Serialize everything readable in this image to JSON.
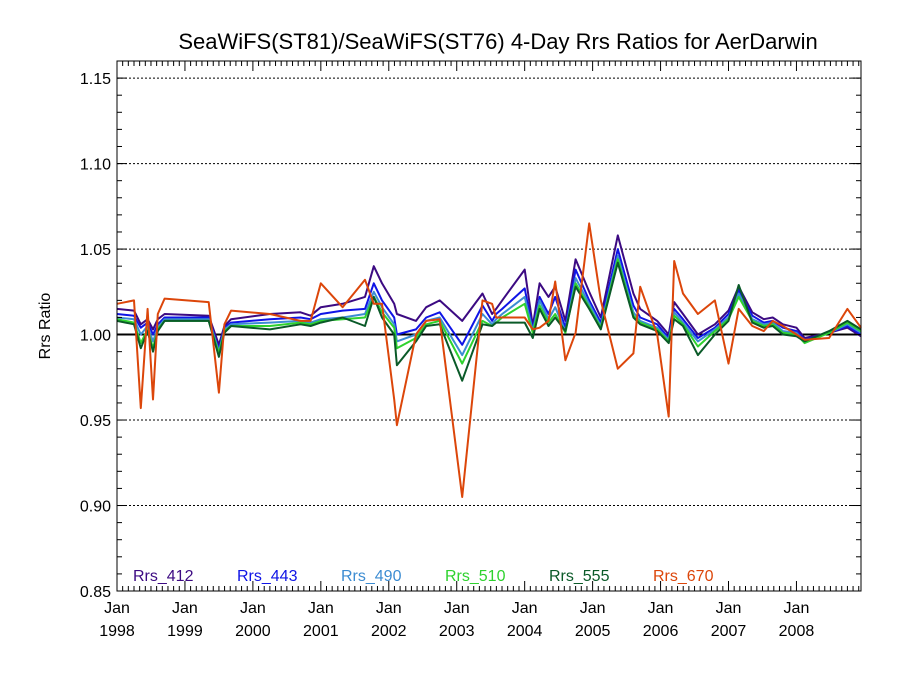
{
  "chart_data": {
    "type": "line",
    "title": "SeaWiFS(ST81)/SeaWiFS(ST76) 4-Day Rrs Ratios for AerDarwin",
    "xlabel": "",
    "ylabel": "Rrs Ratio",
    "xlim": [
      1998.0,
      2008.95
    ],
    "ylim": [
      0.85,
      1.16
    ],
    "reference_line": 1.0,
    "grid": "horizontal dotted",
    "legend_placement": "bottom-left inside",
    "x_ticks": [
      {
        "value": 1998,
        "month": "Jan",
        "year": "1998"
      },
      {
        "value": 1999,
        "month": "Jan",
        "year": "1999"
      },
      {
        "value": 2000,
        "month": "Jan",
        "year": "2000"
      },
      {
        "value": 2001,
        "month": "Jan",
        "year": "2001"
      },
      {
        "value": 2002,
        "month": "Jan",
        "year": "2002"
      },
      {
        "value": 2003,
        "month": "Jan",
        "year": "2003"
      },
      {
        "value": 2004,
        "month": "Jan",
        "year": "2004"
      },
      {
        "value": 2005,
        "month": "Jan",
        "year": "2005"
      },
      {
        "value": 2006,
        "month": "Jan",
        "year": "2006"
      },
      {
        "value": 2007,
        "month": "Jan",
        "year": "2007"
      },
      {
        "value": 2008,
        "month": "Jan",
        "year": "2008"
      }
    ],
    "y_ticks": [
      {
        "value": 0.85,
        "label": "0.85"
      },
      {
        "value": 0.9,
        "label": "0.90"
      },
      {
        "value": 0.95,
        "label": "0.95"
      },
      {
        "value": 1.0,
        "label": "1.00"
      },
      {
        "value": 1.05,
        "label": "1.05"
      },
      {
        "value": 1.1,
        "label": "1.10"
      },
      {
        "value": 1.15,
        "label": "1.15"
      }
    ],
    "x": [
      1998.0,
      1998.25,
      1998.35,
      1998.45,
      1998.53,
      1998.6,
      1998.7,
      1999.35,
      1999.5,
      1999.58,
      1999.68,
      2000.25,
      2000.7,
      2000.85,
      2001.0,
      2001.32,
      2001.65,
      2001.78,
      2001.9,
      2002.08,
      2002.12,
      2002.4,
      2002.55,
      2002.75,
      2003.08,
      2003.38,
      2003.52,
      2003.58,
      2003.67,
      2004.0,
      2004.12,
      2004.22,
      2004.35,
      2004.45,
      2004.6,
      2004.75,
      2004.95,
      2005.12,
      2005.37,
      2005.6,
      2005.7,
      2005.95,
      2006.12,
      2006.2,
      2006.33,
      2006.55,
      2006.8,
      2007.0,
      2007.15,
      2007.35,
      2007.52,
      2007.65,
      2007.8,
      2008.0,
      2008.12,
      2008.48,
      2008.75,
      2008.95
    ],
    "series": [
      {
        "name": "Rrs_412",
        "color": "#3c0a82",
        "values": [
          1.015,
          1.014,
          1.006,
          1.009,
          1.003,
          1.009,
          1.012,
          1.011,
          0.994,
          1.005,
          1.009,
          1.012,
          1.013,
          1.011,
          1.016,
          1.018,
          1.022,
          1.04,
          1.03,
          1.018,
          1.012,
          1.008,
          1.016,
          1.02,
          1.008,
          1.024,
          1.012,
          1.015,
          1.02,
          1.038,
          1.005,
          1.03,
          1.022,
          1.028,
          1.008,
          1.044,
          1.025,
          1.01,
          1.058,
          1.024,
          1.015,
          1.008,
          1.0,
          1.019,
          1.012,
          1.0,
          1.006,
          1.014,
          1.028,
          1.013,
          1.009,
          1.01,
          1.006,
          1.004,
          0.998,
          1.001,
          1.004,
          0.999
        ]
      },
      {
        "name": "Rrs_443",
        "color": "#0f14e6",
        "values": [
          1.012,
          1.011,
          1.004,
          1.007,
          1.0,
          1.006,
          1.01,
          1.01,
          0.991,
          1.004,
          1.007,
          1.009,
          1.01,
          1.009,
          1.012,
          1.014,
          1.015,
          1.03,
          1.02,
          1.01,
          1.0,
          1.003,
          1.01,
          1.013,
          0.994,
          1.017,
          1.008,
          1.012,
          1.015,
          1.027,
          1.003,
          1.022,
          1.012,
          1.022,
          1.004,
          1.038,
          1.02,
          1.007,
          1.05,
          1.017,
          1.01,
          1.006,
          0.998,
          1.015,
          1.009,
          0.998,
          1.004,
          1.012,
          1.026,
          1.011,
          1.007,
          1.008,
          1.004,
          1.002,
          0.997,
          1.001,
          1.005,
          1.0
        ]
      },
      {
        "name": "Rrs_490",
        "color": "#3c8cd2",
        "values": [
          1.01,
          1.009,
          1.0,
          1.005,
          0.996,
          1.004,
          1.009,
          1.009,
          0.99,
          1.003,
          1.006,
          1.007,
          1.008,
          1.007,
          1.009,
          1.01,
          1.012,
          1.025,
          1.016,
          1.006,
          0.996,
          1.0,
          1.008,
          1.01,
          0.988,
          1.012,
          1.006,
          1.009,
          1.012,
          1.022,
          1.002,
          1.02,
          1.009,
          1.016,
          1.002,
          1.033,
          1.018,
          1.005,
          1.046,
          1.013,
          1.008,
          1.004,
          0.997,
          1.013,
          1.007,
          0.996,
          1.003,
          1.01,
          1.024,
          1.009,
          1.006,
          1.007,
          1.002,
          1.001,
          0.996,
          1.001,
          1.006,
          1.001
        ]
      },
      {
        "name": "Rrs_510",
        "color": "#2ed22e",
        "values": [
          1.009,
          1.007,
          0.995,
          1.003,
          0.992,
          1.003,
          1.008,
          1.008,
          0.989,
          1.002,
          1.005,
          1.005,
          1.007,
          1.006,
          1.008,
          1.009,
          1.01,
          1.022,
          1.013,
          1.004,
          0.992,
          0.998,
          1.006,
          1.008,
          0.983,
          1.008,
          1.005,
          1.007,
          1.01,
          1.018,
          1.001,
          1.017,
          1.007,
          1.012,
          1.001,
          1.03,
          1.016,
          1.004,
          1.044,
          1.011,
          1.007,
          1.003,
          0.996,
          1.011,
          1.006,
          0.993,
          1.002,
          1.009,
          1.022,
          1.008,
          1.005,
          1.006,
          1.001,
          1.0,
          0.995,
          1.001,
          1.007,
          1.002
        ]
      },
      {
        "name": "Rrs_555",
        "color": "#0a5a28",
        "values": [
          1.008,
          1.006,
          0.992,
          1.002,
          0.99,
          1.002,
          1.008,
          1.008,
          0.987,
          1.001,
          1.005,
          1.003,
          1.006,
          1.005,
          1.007,
          1.01,
          1.005,
          1.022,
          1.01,
          1.0,
          0.982,
          0.996,
          1.005,
          1.006,
          0.973,
          1.006,
          1.005,
          1.007,
          1.007,
          1.007,
          0.998,
          1.015,
          1.005,
          1.01,
          1.002,
          1.028,
          1.015,
          1.003,
          1.042,
          1.01,
          1.006,
          1.002,
          0.995,
          1.009,
          1.005,
          0.988,
          1.0,
          1.008,
          1.029,
          1.007,
          1.004,
          1.005,
          1.0,
          0.999,
          0.996,
          1.002,
          1.008,
          1.003
        ]
      },
      {
        "name": "Rrs_670",
        "color": "#dc460a",
        "values": [
          1.018,
          1.02,
          0.957,
          1.015,
          0.962,
          1.012,
          1.021,
          1.019,
          0.966,
          1.006,
          1.014,
          1.012,
          1.008,
          1.008,
          1.03,
          1.016,
          1.032,
          1.018,
          1.018,
          0.962,
          0.947,
          1.0,
          1.008,
          1.009,
          0.905,
          1.02,
          1.018,
          1.01,
          1.01,
          1.01,
          1.003,
          1.004,
          1.008,
          1.031,
          0.985,
          1.001,
          1.065,
          1.02,
          0.98,
          0.989,
          1.028,
          1.0,
          0.952,
          1.043,
          1.024,
          1.012,
          1.02,
          0.983,
          1.015,
          1.005,
          1.002,
          1.008,
          1.005,
          1.0,
          0.997,
          0.998,
          1.015,
          1.004
        ]
      }
    ]
  }
}
